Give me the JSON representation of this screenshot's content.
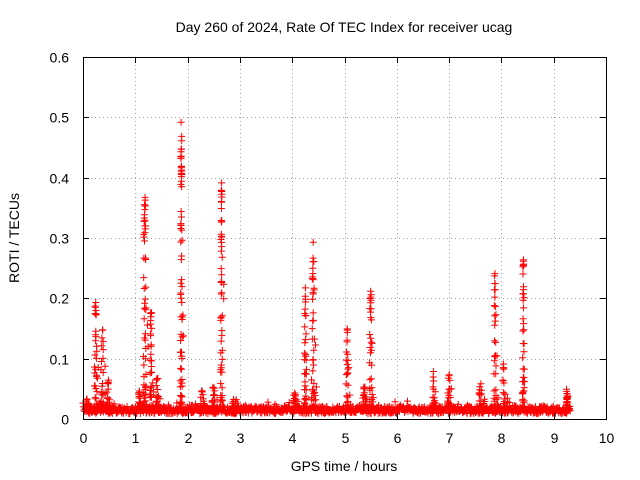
{
  "chart_data": {
    "type": "scatter",
    "title": "Day 260 of 2024, Rate Of TEC Index for receiver ucag",
    "xlabel": "GPS time / hours",
    "ylabel": "ROTI / TECUs",
    "xlim": [
      0,
      10
    ],
    "ylim": [
      0,
      0.6
    ],
    "xticks": [
      0,
      1,
      2,
      3,
      4,
      5,
      6,
      7,
      8,
      9,
      10
    ],
    "yticks": [
      0,
      0.1,
      0.2,
      0.3,
      0.4,
      0.5,
      0.6
    ],
    "xtick_labels": [
      "0",
      "1",
      "2",
      "3",
      "4",
      "5",
      "6",
      "7",
      "8",
      "9",
      "10"
    ],
    "ytick_labels": [
      "0",
      "0.1",
      "0.2",
      "0.3",
      "0.4",
      "0.5",
      "0.6"
    ],
    "grid": true,
    "marker": "+",
    "color": "#ff0000",
    "series": [
      {
        "name": "ROTI",
        "baseline": {
          "x_start": 0.0,
          "x_end": 9.32,
          "typical": 0.015,
          "spread": 0.012
        },
        "bursts": [
          {
            "x": 0.07,
            "width": 0.05,
            "peak": 0.035
          },
          {
            "x": 0.24,
            "width": 0.08,
            "peak": 0.21
          },
          {
            "x": 0.37,
            "width": 0.1,
            "peak": 0.15
          },
          {
            "x": 0.48,
            "width": 0.1,
            "peak": 0.07
          },
          {
            "x": 1.08,
            "width": 0.08,
            "peak": 0.05
          },
          {
            "x": 1.18,
            "width": 0.1,
            "peak": 0.4
          },
          {
            "x": 1.3,
            "width": 0.08,
            "peak": 0.2
          },
          {
            "x": 1.42,
            "width": 0.1,
            "peak": 0.08
          },
          {
            "x": 1.88,
            "width": 0.06,
            "peak": 0.51
          },
          {
            "x": 2.28,
            "width": 0.15,
            "peak": 0.05
          },
          {
            "x": 2.5,
            "width": 0.1,
            "peak": 0.06
          },
          {
            "x": 2.65,
            "width": 0.06,
            "peak": 0.4
          },
          {
            "x": 2.9,
            "width": 0.25,
            "peak": 0.035
          },
          {
            "x": 4.05,
            "width": 0.1,
            "peak": 0.045
          },
          {
            "x": 4.25,
            "width": 0.08,
            "peak": 0.22
          },
          {
            "x": 4.4,
            "width": 0.1,
            "peak": 0.295
          },
          {
            "x": 5.05,
            "width": 0.08,
            "peak": 0.155
          },
          {
            "x": 5.38,
            "width": 0.12,
            "peak": 0.06
          },
          {
            "x": 5.5,
            "width": 0.08,
            "peak": 0.23
          },
          {
            "x": 6.7,
            "width": 0.05,
            "peak": 0.08
          },
          {
            "x": 7.0,
            "width": 0.08,
            "peak": 0.08
          },
          {
            "x": 7.6,
            "width": 0.12,
            "peak": 0.06
          },
          {
            "x": 7.88,
            "width": 0.08,
            "peak": 0.245
          },
          {
            "x": 8.05,
            "width": 0.1,
            "peak": 0.1
          },
          {
            "x": 8.42,
            "width": 0.06,
            "peak": 0.28
          },
          {
            "x": 9.25,
            "width": 0.08,
            "peak": 0.05
          }
        ]
      }
    ]
  }
}
